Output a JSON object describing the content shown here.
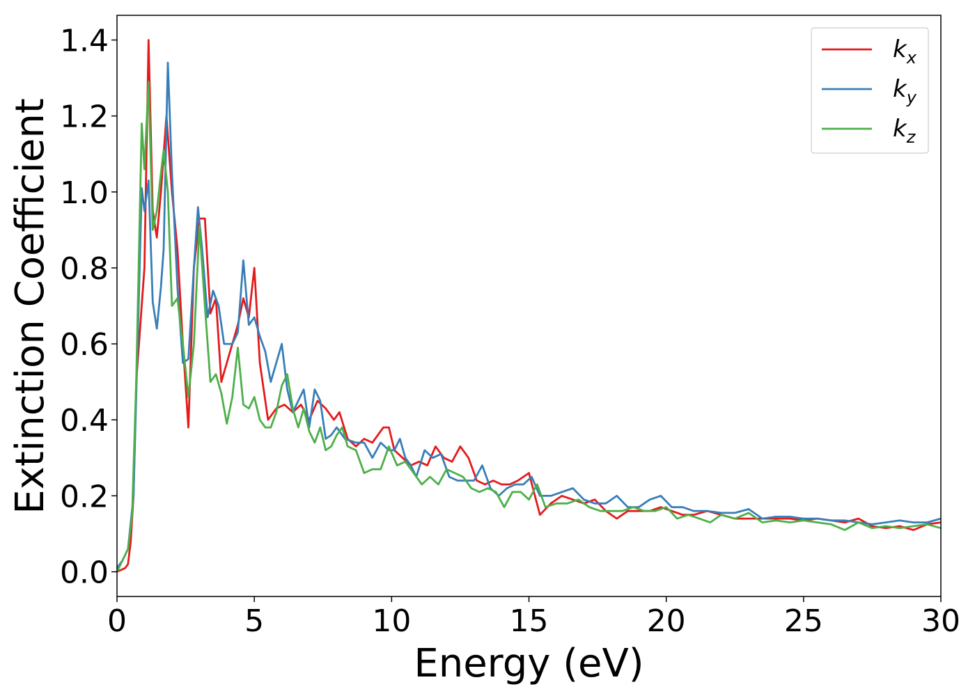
{
  "chart_data": {
    "type": "line",
    "title": "",
    "xlabel": "Energy (eV)",
    "ylabel": "Extinction Coefficient",
    "xlim": [
      0,
      30
    ],
    "ylim": [
      -0.065,
      1.465
    ],
    "xticks": [
      0,
      5,
      10,
      15,
      20,
      25,
      30
    ],
    "yticks": [
      0.0,
      0.2,
      0.4,
      0.6,
      0.8,
      1.0,
      1.2,
      1.4
    ],
    "grid": false,
    "legend_position": "top-right",
    "series": [
      {
        "name": "k",
        "subscript": "x",
        "color": "#e41a1c",
        "points": [
          [
            0,
            0
          ],
          [
            0.3,
            0.01
          ],
          [
            0.4,
            0.02
          ],
          [
            0.5,
            0.08
          ],
          [
            0.6,
            0.2
          ],
          [
            0.7,
            0.5
          ],
          [
            0.85,
            0.65
          ],
          [
            1.0,
            0.8
          ],
          [
            1.15,
            1.4
          ],
          [
            1.3,
            0.95
          ],
          [
            1.45,
            0.88
          ],
          [
            1.6,
            1.0
          ],
          [
            1.8,
            1.2
          ],
          [
            2.0,
            1.0
          ],
          [
            2.2,
            0.85
          ],
          [
            2.4,
            0.6
          ],
          [
            2.6,
            0.38
          ],
          [
            2.8,
            0.8
          ],
          [
            3.0,
            0.93
          ],
          [
            3.2,
            0.93
          ],
          [
            3.4,
            0.68
          ],
          [
            3.6,
            0.72
          ],
          [
            3.8,
            0.5
          ],
          [
            4.0,
            0.55
          ],
          [
            4.2,
            0.6
          ],
          [
            4.4,
            0.65
          ],
          [
            4.6,
            0.72
          ],
          [
            4.8,
            0.67
          ],
          [
            5.0,
            0.8
          ],
          [
            5.2,
            0.55
          ],
          [
            5.5,
            0.4
          ],
          [
            5.8,
            0.43
          ],
          [
            6.1,
            0.44
          ],
          [
            6.4,
            0.42
          ],
          [
            6.7,
            0.44
          ],
          [
            7.0,
            0.4
          ],
          [
            7.3,
            0.45
          ],
          [
            7.6,
            0.43
          ],
          [
            7.9,
            0.4
          ],
          [
            8.1,
            0.42
          ],
          [
            8.4,
            0.35
          ],
          [
            8.7,
            0.33
          ],
          [
            9.0,
            0.35
          ],
          [
            9.3,
            0.34
          ],
          [
            9.7,
            0.38
          ],
          [
            9.9,
            0.38
          ],
          [
            10.1,
            0.32
          ],
          [
            10.4,
            0.3
          ],
          [
            10.7,
            0.28
          ],
          [
            11.0,
            0.29
          ],
          [
            11.3,
            0.28
          ],
          [
            11.6,
            0.33
          ],
          [
            11.9,
            0.3
          ],
          [
            12.2,
            0.29
          ],
          [
            12.5,
            0.33
          ],
          [
            12.8,
            0.3
          ],
          [
            13.1,
            0.24
          ],
          [
            13.4,
            0.23
          ],
          [
            13.7,
            0.24
          ],
          [
            14.0,
            0.23
          ],
          [
            14.3,
            0.23
          ],
          [
            14.6,
            0.24
          ],
          [
            15.0,
            0.26
          ],
          [
            15.4,
            0.15
          ],
          [
            15.8,
            0.18
          ],
          [
            16.2,
            0.2
          ],
          [
            16.6,
            0.19
          ],
          [
            17.0,
            0.18
          ],
          [
            17.4,
            0.19
          ],
          [
            17.8,
            0.16
          ],
          [
            18.2,
            0.14
          ],
          [
            18.6,
            0.16
          ],
          [
            19.0,
            0.16
          ],
          [
            19.4,
            0.16
          ],
          [
            19.8,
            0.17
          ],
          [
            20.2,
            0.16
          ],
          [
            20.6,
            0.15
          ],
          [
            21.0,
            0.15
          ],
          [
            21.5,
            0.16
          ],
          [
            22.0,
            0.15
          ],
          [
            22.5,
            0.14
          ],
          [
            23.0,
            0.14
          ],
          [
            23.5,
            0.14
          ],
          [
            24.0,
            0.14
          ],
          [
            24.5,
            0.14
          ],
          [
            25.0,
            0.135
          ],
          [
            25.5,
            0.14
          ],
          [
            26.0,
            0.135
          ],
          [
            26.5,
            0.13
          ],
          [
            27.0,
            0.14
          ],
          [
            27.5,
            0.12
          ],
          [
            28.0,
            0.115
          ],
          [
            28.5,
            0.12
          ],
          [
            29.0,
            0.11
          ],
          [
            29.5,
            0.125
          ],
          [
            30.0,
            0.13
          ]
        ]
      },
      {
        "name": "k",
        "subscript": "y",
        "color": "#377eb8",
        "points": [
          [
            0,
            0.01
          ],
          [
            0.2,
            0.03
          ],
          [
            0.4,
            0.06
          ],
          [
            0.6,
            0.2
          ],
          [
            0.75,
            0.6
          ],
          [
            0.9,
            1.01
          ],
          [
            1.0,
            0.95
          ],
          [
            1.15,
            1.03
          ],
          [
            1.3,
            0.71
          ],
          [
            1.45,
            0.64
          ],
          [
            1.6,
            0.75
          ],
          [
            1.7,
            0.85
          ],
          [
            1.85,
            1.34
          ],
          [
            2.0,
            1.05
          ],
          [
            2.2,
            0.75
          ],
          [
            2.4,
            0.55
          ],
          [
            2.6,
            0.56
          ],
          [
            2.8,
            0.8
          ],
          [
            2.95,
            0.96
          ],
          [
            3.1,
            0.85
          ],
          [
            3.3,
            0.67
          ],
          [
            3.5,
            0.74
          ],
          [
            3.7,
            0.7
          ],
          [
            3.9,
            0.6
          ],
          [
            4.2,
            0.6
          ],
          [
            4.4,
            0.63
          ],
          [
            4.6,
            0.82
          ],
          [
            4.8,
            0.65
          ],
          [
            5.0,
            0.67
          ],
          [
            5.2,
            0.62
          ],
          [
            5.4,
            0.58
          ],
          [
            5.6,
            0.5
          ],
          [
            5.8,
            0.55
          ],
          [
            6.0,
            0.6
          ],
          [
            6.2,
            0.48
          ],
          [
            6.4,
            0.42
          ],
          [
            6.6,
            0.45
          ],
          [
            6.8,
            0.48
          ],
          [
            7.0,
            0.38
          ],
          [
            7.2,
            0.48
          ],
          [
            7.4,
            0.45
          ],
          [
            7.6,
            0.35
          ],
          [
            7.8,
            0.36
          ],
          [
            8.0,
            0.38
          ],
          [
            8.3,
            0.35
          ],
          [
            8.7,
            0.34
          ],
          [
            9.0,
            0.34
          ],
          [
            9.3,
            0.3
          ],
          [
            9.6,
            0.34
          ],
          [
            9.9,
            0.32
          ],
          [
            10.1,
            0.32
          ],
          [
            10.3,
            0.35
          ],
          [
            10.5,
            0.3
          ],
          [
            10.7,
            0.28
          ],
          [
            10.9,
            0.25
          ],
          [
            11.2,
            0.32
          ],
          [
            11.5,
            0.3
          ],
          [
            11.8,
            0.31
          ],
          [
            12.1,
            0.25
          ],
          [
            12.4,
            0.24
          ],
          [
            12.7,
            0.24
          ],
          [
            13.0,
            0.24
          ],
          [
            13.3,
            0.28
          ],
          [
            13.6,
            0.22
          ],
          [
            13.9,
            0.2
          ],
          [
            14.2,
            0.22
          ],
          [
            14.5,
            0.23
          ],
          [
            14.8,
            0.23
          ],
          [
            15.1,
            0.25
          ],
          [
            15.4,
            0.2
          ],
          [
            15.8,
            0.2
          ],
          [
            16.2,
            0.21
          ],
          [
            16.6,
            0.22
          ],
          [
            17.0,
            0.19
          ],
          [
            17.4,
            0.18
          ],
          [
            17.8,
            0.18
          ],
          [
            18.2,
            0.2
          ],
          [
            18.6,
            0.17
          ],
          [
            19.0,
            0.17
          ],
          [
            19.4,
            0.19
          ],
          [
            19.8,
            0.2
          ],
          [
            20.2,
            0.17
          ],
          [
            20.6,
            0.17
          ],
          [
            21.0,
            0.16
          ],
          [
            21.5,
            0.16
          ],
          [
            22.0,
            0.155
          ],
          [
            22.5,
            0.155
          ],
          [
            23.0,
            0.165
          ],
          [
            23.5,
            0.14
          ],
          [
            24.0,
            0.145
          ],
          [
            24.5,
            0.145
          ],
          [
            25.0,
            0.14
          ],
          [
            25.5,
            0.14
          ],
          [
            26.0,
            0.135
          ],
          [
            26.5,
            0.135
          ],
          [
            27.0,
            0.13
          ],
          [
            27.5,
            0.125
          ],
          [
            28.0,
            0.13
          ],
          [
            28.5,
            0.135
          ],
          [
            29.0,
            0.13
          ],
          [
            29.5,
            0.13
          ],
          [
            30.0,
            0.14
          ]
        ]
      },
      {
        "name": "k",
        "subscript": "z",
        "color": "#4daf4a",
        "points": [
          [
            0,
            0
          ],
          [
            0.2,
            0.03
          ],
          [
            0.4,
            0.06
          ],
          [
            0.55,
            0.15
          ],
          [
            0.7,
            0.5
          ],
          [
            0.9,
            1.18
          ],
          [
            1.0,
            1.06
          ],
          [
            1.15,
            1.29
          ],
          [
            1.3,
            0.9
          ],
          [
            1.45,
            0.95
          ],
          [
            1.6,
            1.05
          ],
          [
            1.7,
            1.11
          ],
          [
            1.85,
            1.0
          ],
          [
            2.0,
            0.7
          ],
          [
            2.2,
            0.72
          ],
          [
            2.4,
            0.6
          ],
          [
            2.6,
            0.46
          ],
          [
            2.8,
            0.6
          ],
          [
            3.0,
            0.91
          ],
          [
            3.2,
            0.7
          ],
          [
            3.4,
            0.5
          ],
          [
            3.6,
            0.52
          ],
          [
            3.8,
            0.47
          ],
          [
            4.0,
            0.39
          ],
          [
            4.2,
            0.46
          ],
          [
            4.4,
            0.59
          ],
          [
            4.6,
            0.44
          ],
          [
            4.8,
            0.43
          ],
          [
            5.0,
            0.46
          ],
          [
            5.2,
            0.4
          ],
          [
            5.4,
            0.38
          ],
          [
            5.6,
            0.38
          ],
          [
            5.8,
            0.42
          ],
          [
            6.0,
            0.49
          ],
          [
            6.2,
            0.52
          ],
          [
            6.4,
            0.43
          ],
          [
            6.6,
            0.38
          ],
          [
            6.8,
            0.43
          ],
          [
            7.0,
            0.37
          ],
          [
            7.2,
            0.34
          ],
          [
            7.4,
            0.38
          ],
          [
            7.6,
            0.32
          ],
          [
            7.8,
            0.33
          ],
          [
            8.0,
            0.36
          ],
          [
            8.2,
            0.38
          ],
          [
            8.4,
            0.33
          ],
          [
            8.7,
            0.32
          ],
          [
            9.0,
            0.26
          ],
          [
            9.3,
            0.27
          ],
          [
            9.6,
            0.27
          ],
          [
            9.9,
            0.33
          ],
          [
            10.2,
            0.28
          ],
          [
            10.5,
            0.29
          ],
          [
            10.8,
            0.26
          ],
          [
            11.1,
            0.23
          ],
          [
            11.4,
            0.25
          ],
          [
            11.7,
            0.23
          ],
          [
            12.0,
            0.27
          ],
          [
            12.3,
            0.26
          ],
          [
            12.6,
            0.25
          ],
          [
            12.9,
            0.22
          ],
          [
            13.2,
            0.21
          ],
          [
            13.5,
            0.22
          ],
          [
            13.8,
            0.21
          ],
          [
            14.1,
            0.17
          ],
          [
            14.4,
            0.21
          ],
          [
            14.7,
            0.21
          ],
          [
            15.0,
            0.19
          ],
          [
            15.3,
            0.23
          ],
          [
            15.6,
            0.17
          ],
          [
            16.0,
            0.18
          ],
          [
            16.4,
            0.18
          ],
          [
            16.8,
            0.19
          ],
          [
            17.2,
            0.17
          ],
          [
            17.6,
            0.16
          ],
          [
            18.0,
            0.16
          ],
          [
            18.4,
            0.16
          ],
          [
            18.8,
            0.17
          ],
          [
            19.2,
            0.16
          ],
          [
            19.6,
            0.16
          ],
          [
            20.0,
            0.17
          ],
          [
            20.4,
            0.14
          ],
          [
            20.8,
            0.15
          ],
          [
            21.2,
            0.14
          ],
          [
            21.6,
            0.13
          ],
          [
            22.0,
            0.15
          ],
          [
            22.5,
            0.14
          ],
          [
            23.0,
            0.155
          ],
          [
            23.5,
            0.13
          ],
          [
            24.0,
            0.135
          ],
          [
            24.5,
            0.13
          ],
          [
            25.0,
            0.135
          ],
          [
            25.5,
            0.13
          ],
          [
            26.0,
            0.125
          ],
          [
            26.5,
            0.11
          ],
          [
            27.0,
            0.13
          ],
          [
            27.5,
            0.115
          ],
          [
            28.0,
            0.12
          ],
          [
            28.5,
            0.115
          ],
          [
            29.0,
            0.12
          ],
          [
            29.5,
            0.125
          ],
          [
            30.0,
            0.115
          ]
        ]
      }
    ]
  }
}
